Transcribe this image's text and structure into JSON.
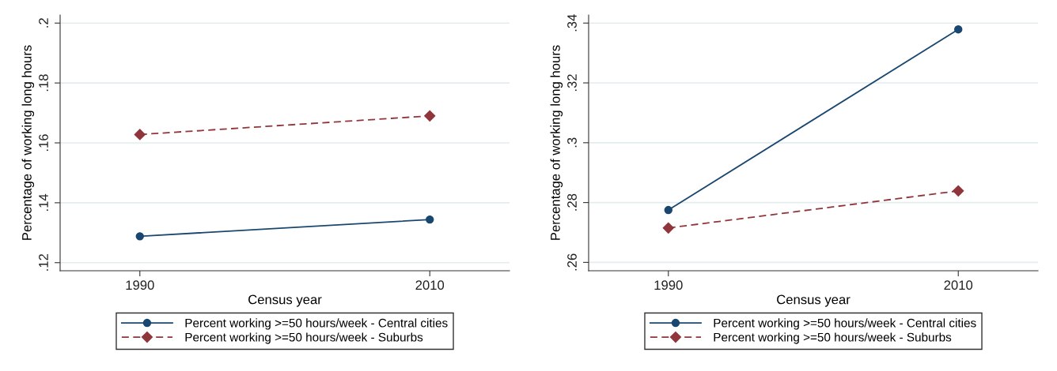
{
  "chart_data": [
    {
      "type": "line",
      "xlabel": "Census year",
      "ylabel": "Percentage of working long hours",
      "categories": [
        "1990",
        "2010"
      ],
      "ylim": [
        0.1173,
        0.2027
      ],
      "yticks": [
        {
          "value": 0.12,
          "label": ".12"
        },
        {
          "value": 0.14,
          "label": ".14"
        },
        {
          "value": 0.16,
          "label": ".16"
        },
        {
          "value": 0.18,
          "label": ".18"
        },
        {
          "value": 0.2,
          "label": ".2"
        }
      ],
      "grid": "y",
      "legend": "bottom",
      "series": [
        {
          "name": "Percent working >=50 hours/week - Central cities",
          "color": "#1a476f",
          "values": [
            0.1288,
            0.1344
          ],
          "marker": "circle",
          "line_style": "solid"
        },
        {
          "name": "Percent working >=50 hours/week - Suburbs",
          "color": "#90353b",
          "values": [
            0.1628,
            0.169
          ],
          "marker": "diamond",
          "line_style": "dashed"
        }
      ]
    },
    {
      "type": "line",
      "xlabel": "Census year",
      "ylabel": "Percentage of working long hours",
      "categories": [
        "1990",
        "2010"
      ],
      "ylim": [
        0.2572,
        0.3427
      ],
      "yticks": [
        {
          "value": 0.26,
          "label": ".26"
        },
        {
          "value": 0.28,
          "label": ".28"
        },
        {
          "value": 0.3,
          "label": ".3"
        },
        {
          "value": 0.32,
          "label": ".32"
        },
        {
          "value": 0.34,
          "label": ".34"
        }
      ],
      "grid": "y",
      "legend": "bottom",
      "series": [
        {
          "name": "Percent working >=50 hours/week - Central cities",
          "color": "#1a476f",
          "values": [
            0.2775,
            0.3379
          ],
          "marker": "circle",
          "line_style": "solid"
        },
        {
          "name": "Percent working >=50 hours/week - Suburbs",
          "color": "#90353b",
          "values": [
            0.2715,
            0.2839
          ],
          "marker": "diamond",
          "line_style": "dashed"
        }
      ]
    }
  ]
}
